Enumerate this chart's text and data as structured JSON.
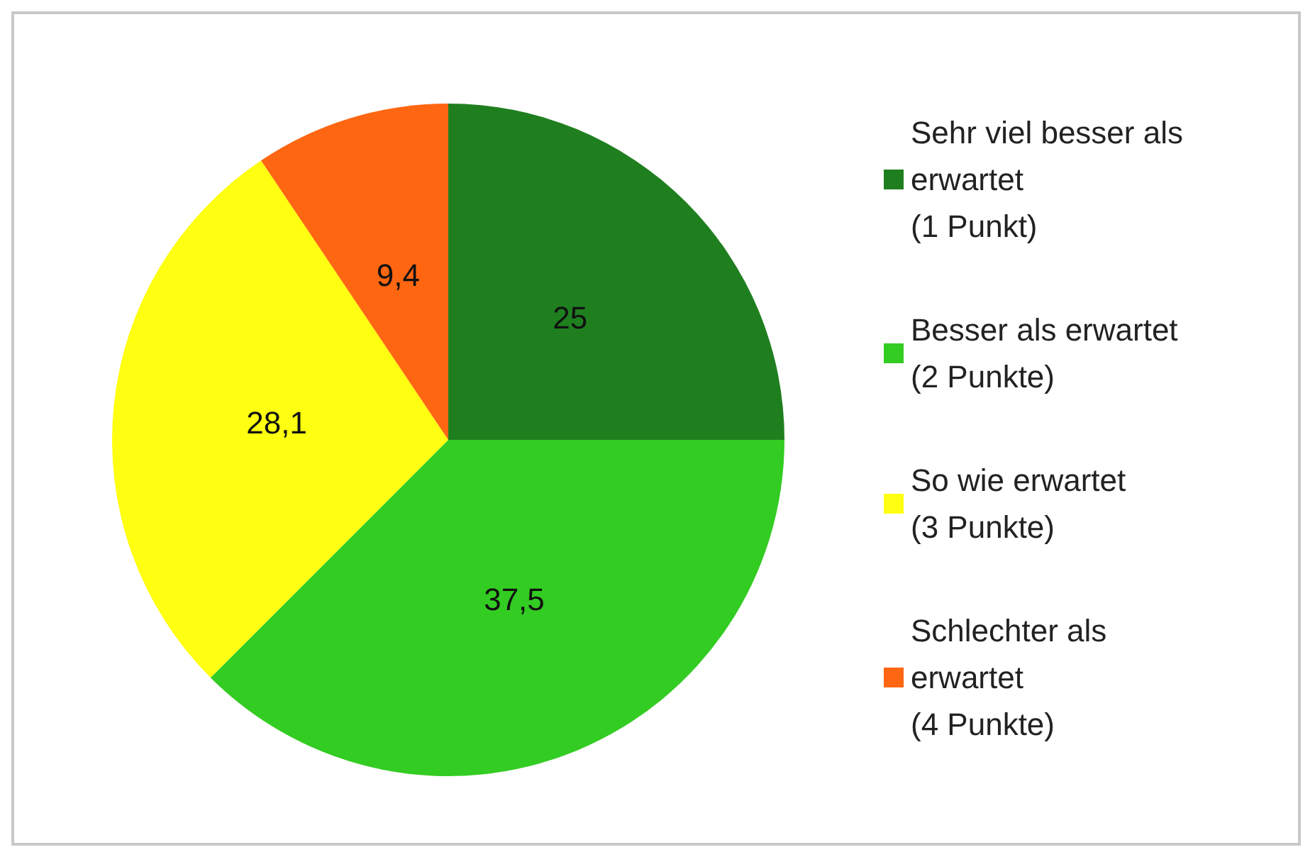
{
  "chart_data": {
    "type": "pie",
    "categories": [
      "Sehr viel besser als\nerwartet\n(1 Punkt)",
      "Besser als erwartet\n(2 Punkte)",
      "So wie erwartet\n(3 Punkte)",
      "Schlechter als\nerwartet\n(4 Punkte)"
    ],
    "values": [
      25,
      37.5,
      28.1,
      9.4
    ],
    "value_labels": [
      "25",
      "37,5",
      "28,1",
      "9,4"
    ],
    "colors": [
      "#1f7f1f",
      "#33cc22",
      "#ffff11",
      "#ff6611"
    ],
    "legend": "right"
  }
}
